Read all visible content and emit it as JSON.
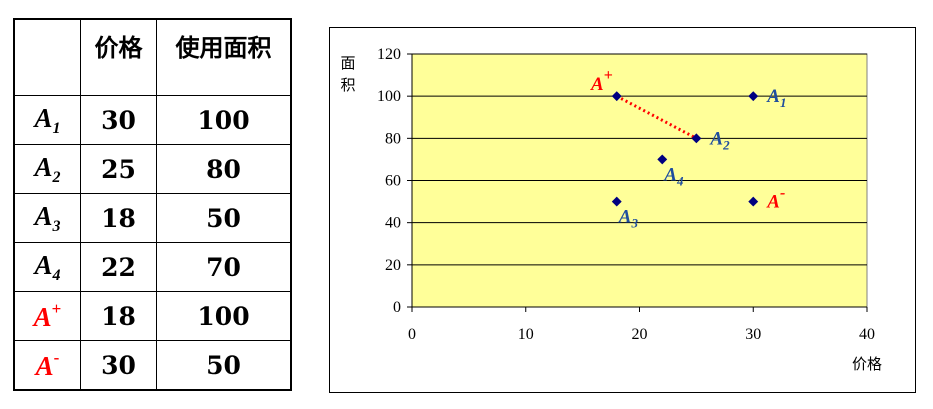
{
  "table": {
    "headers": [
      "",
      "价格",
      "使用面积"
    ],
    "rows": [
      {
        "label": "A",
        "mark": "1",
        "mark_type": "sub",
        "price": "30",
        "area": "100",
        "highlight": false
      },
      {
        "label": "A",
        "mark": "2",
        "mark_type": "sub",
        "price": "25",
        "area": "80",
        "highlight": false
      },
      {
        "label": "A",
        "mark": "3",
        "mark_type": "sub",
        "price": "18",
        "area": "50",
        "highlight": false
      },
      {
        "label": "A",
        "mark": "4",
        "mark_type": "sub",
        "price": "22",
        "area": "70",
        "highlight": false
      },
      {
        "label": "A",
        "mark": "+",
        "mark_type": "sup",
        "price": "18",
        "area": "100",
        "highlight": true
      },
      {
        "label": "A",
        "mark": "-",
        "mark_type": "sup",
        "price": "30",
        "area": "50",
        "highlight": true
      }
    ]
  },
  "colors": {
    "plot_bg": "#ffff99",
    "point": "#000080",
    "label_blue": "#1f4e9e",
    "label_red": "#ff0000",
    "highlight_text": "#ff0000"
  },
  "chart_data": {
    "type": "scatter",
    "xlabel": "价格",
    "ylabel": "面积",
    "xlim": [
      0,
      40
    ],
    "ylim": [
      0,
      120
    ],
    "xticks": [
      0,
      10,
      20,
      30,
      40
    ],
    "yticks": [
      0,
      20,
      40,
      60,
      80,
      100,
      120
    ],
    "grid": "horizontal",
    "points": [
      {
        "label": "A",
        "mark": "1",
        "mark_type": "sub",
        "x": 30,
        "y": 100,
        "color": "blue",
        "label_side": "right"
      },
      {
        "label": "A",
        "mark": "2",
        "mark_type": "sub",
        "x": 25,
        "y": 80,
        "color": "blue",
        "label_side": "right"
      },
      {
        "label": "A",
        "mark": "3",
        "mark_type": "sub",
        "x": 18,
        "y": 50,
        "color": "blue",
        "label_side": "below-right"
      },
      {
        "label": "A",
        "mark": "4",
        "mark_type": "sub",
        "x": 22,
        "y": 70,
        "color": "blue",
        "label_side": "below-right"
      },
      {
        "label": "A",
        "mark": "+",
        "mark_type": "sup",
        "x": 18,
        "y": 100,
        "color": "red",
        "label_side": "above-left"
      },
      {
        "label": "A",
        "mark": "-",
        "mark_type": "sup",
        "x": 30,
        "y": 50,
        "color": "red",
        "label_side": "right"
      }
    ],
    "connector": {
      "from": 4,
      "to": 1,
      "style": "dotted",
      "color": "red"
    }
  }
}
